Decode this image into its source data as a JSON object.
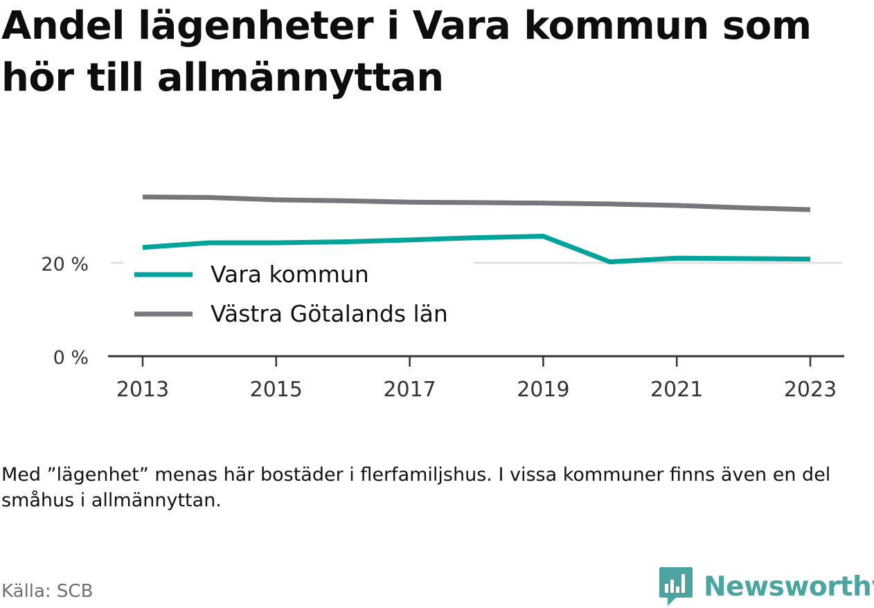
{
  "title": "Andel lägenheter i Vara kommun som hör till allmännyttan",
  "note": "Med ”lägenhet” menas här bostäder i flerfamiljshus. I vissa kommuner finns även en del småhus i allmännyttan.",
  "source": "Källa: SCB",
  "brand": "Newsworthy",
  "colors": {
    "vara": "#00a39a",
    "vastra": "#76767c",
    "grid": "#dddddd",
    "axis": "#333333",
    "brand": "#4aa5a0"
  },
  "chart_data": {
    "type": "line",
    "x": [
      2013,
      2014,
      2015,
      2016,
      2017,
      2018,
      2019,
      2020,
      2021,
      2022,
      2023
    ],
    "series": [
      {
        "name": "Vara kommun",
        "values": [
          23.3,
          24.3,
          24.3,
          24.5,
          24.9,
          25.4,
          25.7,
          20.2,
          21.0,
          20.9,
          20.8
        ]
      },
      {
        "name": "Västra Götalands län",
        "values": [
          34.1,
          34.0,
          33.5,
          33.3,
          33.0,
          32.9,
          32.8,
          32.6,
          32.3,
          31.8,
          31.4
        ]
      }
    ],
    "x_ticks": [
      "2013",
      "2015",
      "2017",
      "2019",
      "2021",
      "2023"
    ],
    "y_ticks": [
      "0 %",
      "20 %"
    ],
    "ylim": [
      0,
      40
    ],
    "grid": true,
    "legend_position": "center-left"
  }
}
